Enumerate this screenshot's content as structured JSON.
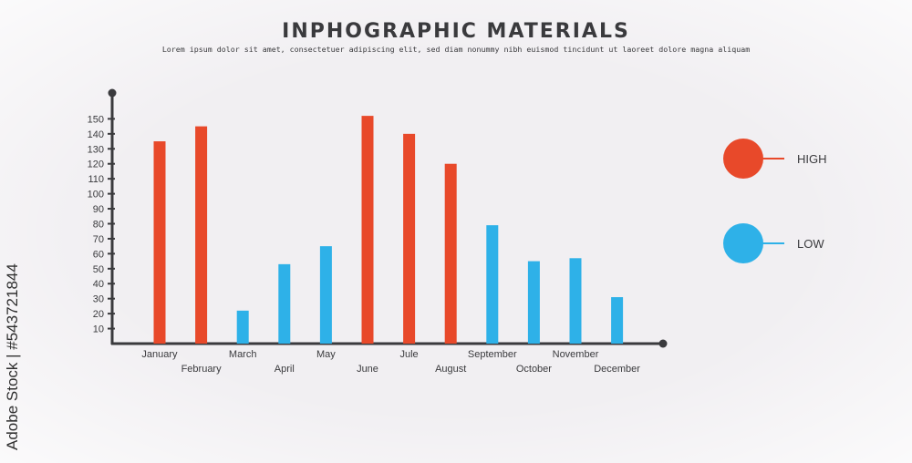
{
  "header": {
    "title": "INPHOGRAPHIC MATERIALS",
    "subtitle": "Lorem ipsum dolor sit amet, consectetuer adipiscing elit, sed diam nonummy nibh euismod tincidunt ut laoreet dolore magna aliquam"
  },
  "watermark": {
    "side_text": "Adobe Stock | #543721844"
  },
  "colors": {
    "high": "#e8492a",
    "low": "#2eb1e8",
    "axis": "#3a3a3d"
  },
  "legend": [
    {
      "label": "HIGH",
      "color": "#e8492a"
    },
    {
      "label": "LOW",
      "color": "#2eb1e8"
    }
  ],
  "chart_data": {
    "type": "bar",
    "categories": [
      "January",
      "February",
      "March",
      "April",
      "May",
      "June",
      "Jule",
      "August",
      "September",
      "October",
      "November",
      "December"
    ],
    "values": [
      135,
      145,
      22,
      53,
      65,
      152,
      140,
      120,
      79,
      55,
      57,
      31
    ],
    "levels": [
      "high",
      "high",
      "low",
      "low",
      "low",
      "high",
      "high",
      "high",
      "low",
      "low",
      "low",
      "low"
    ],
    "series": [
      {
        "name": "HIGH",
        "color": "#e8492a"
      },
      {
        "name": "LOW",
        "color": "#2eb1e8"
      }
    ],
    "yticks": [
      10,
      20,
      30,
      40,
      50,
      60,
      70,
      80,
      90,
      100,
      110,
      120,
      130,
      140,
      150
    ],
    "ylim": [
      0,
      150
    ],
    "title": "INPHOGRAPHIC MATERIALS",
    "xlabel": "",
    "ylabel": "",
    "legend_position": "right",
    "grid": false
  }
}
